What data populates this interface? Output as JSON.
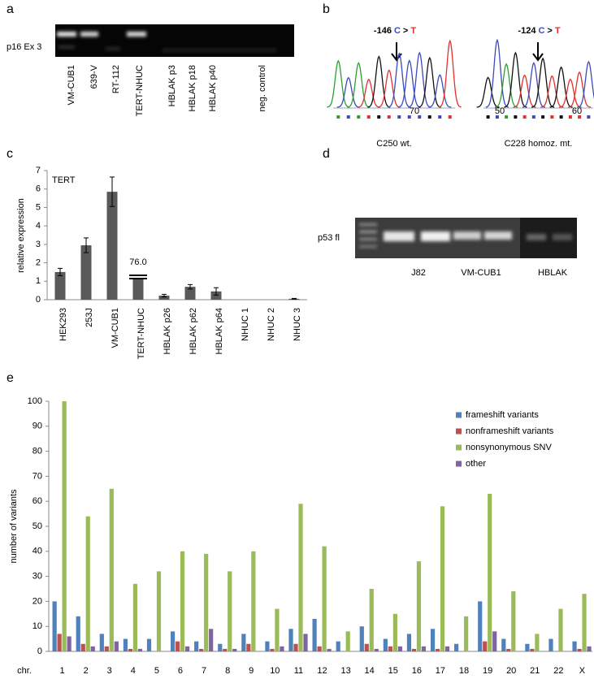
{
  "panel_labels": [
    "a",
    "b",
    "c",
    "d",
    "e"
  ],
  "gel_a": {
    "label": "p16 Ex 3",
    "lanes": [
      "VM-CUB1",
      "639-V",
      "RT-112",
      "TERT-NHUC",
      "HBLAK p3",
      "HBLAK p18",
      "HBLAK p40",
      "neg. control"
    ]
  },
  "chromatograms": [
    {
      "position": "-146",
      "ref": "C",
      "sign": ">",
      "alt": "T",
      "caption": "C250 wt.",
      "axis_labels": [
        "70"
      ]
    },
    {
      "position": "-124",
      "ref": "C",
      "sign": ">",
      "alt": "T",
      "caption": "C228 homoz. mt.",
      "axis_labels": [
        "50",
        "60"
      ]
    }
  ],
  "gel_d": {
    "label": "p53 fl",
    "groups": [
      "J82",
      "VM-CUB1",
      "HBLAK"
    ]
  },
  "chart_data": [
    {
      "type": "bar",
      "annotation": "TERT",
      "y_label": "relative expression",
      "categories": [
        "HEK293",
        "253J",
        "VM-CUB1",
        "TERT-NHUC",
        "HBLAK p26",
        "HBLAK p62",
        "HBLAK p64",
        "NHUC 1",
        "NHUC 2",
        "NHUC 3"
      ],
      "values": [
        1.5,
        2.95,
        5.85,
        76.0,
        0.22,
        0.7,
        0.45,
        0,
        0,
        0.05
      ],
      "errors": [
        0.2,
        0.4,
        0.8,
        null,
        0.07,
        0.12,
        0.2,
        null,
        null,
        0.02
      ],
      "value_labels": [
        null,
        null,
        null,
        "76.0",
        null,
        null,
        null,
        null,
        null,
        null
      ],
      "color": "#595959",
      "ylim": [
        0,
        7
      ],
      "yticks": [
        0,
        1,
        2,
        3,
        4,
        5,
        6,
        7
      ]
    },
    {
      "type": "bar",
      "x_label": "chr.",
      "y_label": "number of variants",
      "categories": [
        "1",
        "2",
        "3",
        "4",
        "5",
        "6",
        "7",
        "8",
        "9",
        "10",
        "11",
        "12",
        "13",
        "14",
        "15",
        "16",
        "17",
        "18",
        "19",
        "20",
        "21",
        "22",
        "X"
      ],
      "series": [
        {
          "name": "frameshift variants",
          "color": "#4f81bd",
          "values": [
            20,
            14,
            7,
            5,
            5,
            8,
            4,
            3,
            7,
            4,
            9,
            13,
            4,
            10,
            5,
            7,
            9,
            3,
            20,
            5,
            3,
            5,
            4
          ]
        },
        {
          "name": "nonframeshift variants",
          "color": "#c0504d",
          "values": [
            7,
            3,
            2,
            1,
            0,
            4,
            1,
            1,
            3,
            1,
            3,
            2,
            0,
            3,
            2,
            1,
            1,
            0,
            4,
            1,
            1,
            0,
            1
          ]
        },
        {
          "name": "nonsynonymous SNV",
          "color": "#9bbb59",
          "values": [
            100,
            54,
            65,
            27,
            32,
            40,
            39,
            32,
            40,
            17,
            59,
            42,
            8,
            25,
            15,
            36,
            58,
            14,
            63,
            24,
            7,
            17,
            23
          ]
        },
        {
          "name": "other",
          "color": "#8064a2",
          "values": [
            6,
            2,
            4,
            1,
            0,
            2,
            9,
            1,
            0,
            2,
            7,
            1,
            0,
            1,
            2,
            2,
            2,
            0,
            8,
            0,
            0,
            0,
            2
          ]
        }
      ],
      "ylim": [
        0,
        100
      ],
      "yticks": [
        0,
        10,
        20,
        30,
        40,
        50,
        60,
        70,
        80,
        90,
        100
      ],
      "legend": "upper right"
    }
  ]
}
